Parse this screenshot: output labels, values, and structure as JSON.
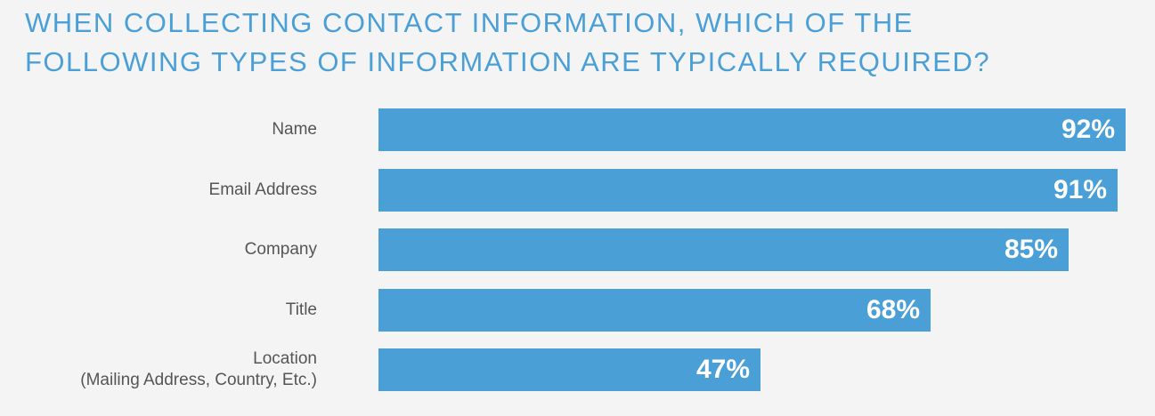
{
  "chart_data": {
    "type": "bar",
    "orientation": "horizontal",
    "title_lines": [
      "WHEN COLLECTING CONTACT INFORMATION, WHICH OF THE",
      "FOLLOWING TYPES OF INFORMATION ARE TYPICALLY REQUIRED?"
    ],
    "categories": [
      [
        "Name"
      ],
      [
        "Email Address"
      ],
      [
        "Company"
      ],
      [
        "Title"
      ],
      [
        "Location",
        "(Mailing Address, Country, Etc.)"
      ]
    ],
    "values": [
      92,
      91,
      85,
      68,
      47
    ],
    "value_labels": [
      "92%",
      "91%",
      "85%",
      "68%",
      "47%"
    ],
    "xlim": [
      0,
      100
    ],
    "grid": false,
    "bar_color": "#4a9fd6"
  }
}
